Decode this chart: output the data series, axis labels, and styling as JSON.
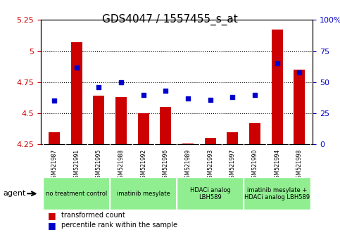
{
  "title": "GDS4047 / 1557455_s_at",
  "samples": [
    "GSM521987",
    "GSM521991",
    "GSM521995",
    "GSM521988",
    "GSM521992",
    "GSM521996",
    "GSM521989",
    "GSM521993",
    "GSM521997",
    "GSM521990",
    "GSM521994",
    "GSM521998"
  ],
  "bar_values": [
    4.35,
    5.07,
    4.64,
    4.63,
    4.5,
    4.55,
    4.26,
    4.3,
    4.35,
    4.42,
    5.17,
    4.85
  ],
  "dot_values": [
    35,
    62,
    46,
    50,
    40,
    43,
    37,
    36,
    38,
    40,
    65,
    58
  ],
  "bar_bottom": 4.25,
  "ylim_left": [
    4.25,
    5.25
  ],
  "ylim_right": [
    0,
    100
  ],
  "bar_color": "#CC0000",
  "dot_color": "#0000CC",
  "yticks_left": [
    4.25,
    4.5,
    4.75,
    5.0,
    5.25
  ],
  "yticks_right": [
    0,
    25,
    50,
    75,
    100
  ],
  "ytick_labels_left": [
    "4.25",
    "4.5",
    "4.75",
    "5",
    "5.25"
  ],
  "ytick_labels_right": [
    "0",
    "25",
    "50",
    "75",
    "100%"
  ],
  "groups": [
    {
      "label": "no treatment control",
      "start": 0,
      "end": 3,
      "color": "#90EE90"
    },
    {
      "label": "imatinib mesylate",
      "start": 3,
      "end": 6,
      "color": "#90EE90"
    },
    {
      "label": "HDACi analog\nLBH589",
      "start": 6,
      "end": 9,
      "color": "#90EE90"
    },
    {
      "label": "imatinib mesylate +\nHDACi analog LBH589",
      "start": 9,
      "end": 12,
      "color": "#90EE90"
    }
  ],
  "agent_label": "agent",
  "legend_bar_label": "transformed count",
  "legend_dot_label": "percentile rank within the sample",
  "grid_color": "#000000",
  "bg_color": "#FFFFFF",
  "plot_bg": "#FFFFFF"
}
